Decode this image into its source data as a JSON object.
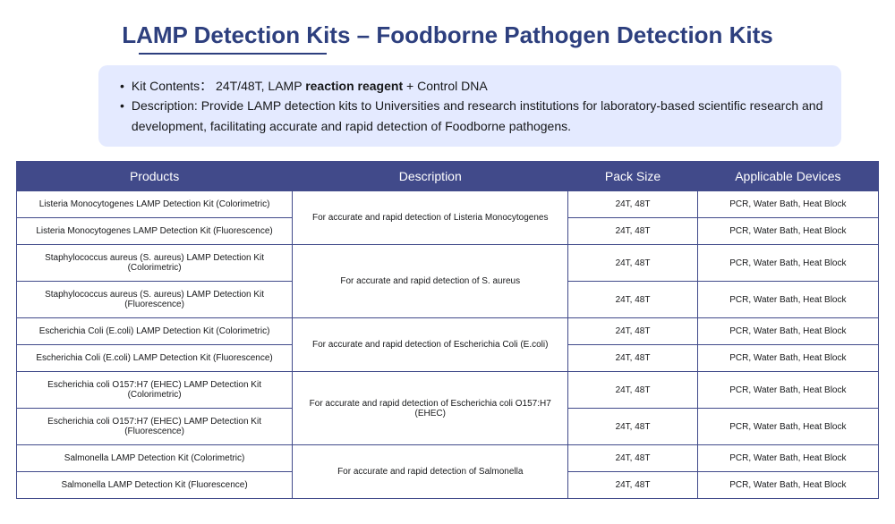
{
  "title": "LAMP Detection Kits – Foodborne Pathogen Detection Kits",
  "info": {
    "line1_label": "Kit Contents：",
    "line1_text1": " 24T/48T, LAMP ",
    "line1_bold": "reaction reagent",
    "line1_text2": " + Control DNA",
    "line2_label": "Description:",
    "line2_text": " Provide LAMP detection kits to  Universities and research institutions for laboratory-based scientific research and development, facilitating accurate and rapid detection of Foodborne pathogens."
  },
  "table": {
    "headers": {
      "products": "Products",
      "description": "Description",
      "pack_size": "Pack Size",
      "devices": "Applicable Devices"
    },
    "groups": [
      {
        "desc": "For accurate and rapid detection of Listeria Monocytogenes",
        "rows": [
          {
            "product": "Listeria Monocytogenes LAMP Detection Kit (Colorimetric)",
            "pack": "24T, 48T",
            "devices": "PCR, Water Bath, Heat Block"
          },
          {
            "product": "Listeria Monocytogenes LAMP Detection Kit (Fluorescence)",
            "pack": "24T, 48T",
            "devices": "PCR, Water Bath, Heat Block"
          }
        ]
      },
      {
        "desc": "For accurate and rapid detection of  S. aureus",
        "rows": [
          {
            "product": "Staphylococcus aureus (S. aureus) LAMP Detection Kit (Colorimetric)",
            "pack": "24T, 48T",
            "devices": "PCR, Water Bath, Heat Block"
          },
          {
            "product": "Staphylococcus aureus (S. aureus) LAMP Detection Kit (Fluorescence)",
            "pack": "24T, 48T",
            "devices": "PCR, Water Bath, Heat Block"
          }
        ]
      },
      {
        "desc": "For accurate and rapid detection of Escherichia Coli (E.coli)",
        "rows": [
          {
            "product": "Escherichia Coli (E.coli) LAMP Detection Kit (Colorimetric)",
            "pack": "24T, 48T",
            "devices": "PCR, Water Bath, Heat Block"
          },
          {
            "product": "Escherichia Coli (E.coli) LAMP Detection Kit (Fluorescence)",
            "pack": "24T, 48T",
            "devices": "PCR, Water Bath, Heat Block"
          }
        ]
      },
      {
        "desc": "For accurate and rapid detection of Escherichia coli O157:H7 (EHEC)",
        "rows": [
          {
            "product": "Escherichia coli O157:H7 (EHEC) LAMP Detection Kit (Colorimetric)",
            "pack": "24T, 48T",
            "devices": "PCR, Water Bath, Heat Block"
          },
          {
            "product": "Escherichia coli O157:H7 (EHEC) LAMP Detection Kit (Fluorescence)",
            "pack": "24T, 48T",
            "devices": "PCR, Water Bath, Heat Block"
          }
        ]
      },
      {
        "desc": "For accurate and rapid detection of Salmonella",
        "rows": [
          {
            "product": "Salmonella LAMP Detection Kit (Colorimetric)",
            "pack": "24T, 48T",
            "devices": "PCR, Water Bath, Heat Block"
          },
          {
            "product": "Salmonella LAMP Detection Kit (Fluorescence)",
            "pack": "24T, 48T",
            "devices": "PCR, Water Bath, Heat Block"
          }
        ]
      }
    ]
  },
  "colors": {
    "title_color": "#2d3f7e",
    "header_bg": "#414a8a",
    "info_bg": "#e4eaff",
    "border_color": "#414a8a",
    "text_color": "#17181a"
  }
}
